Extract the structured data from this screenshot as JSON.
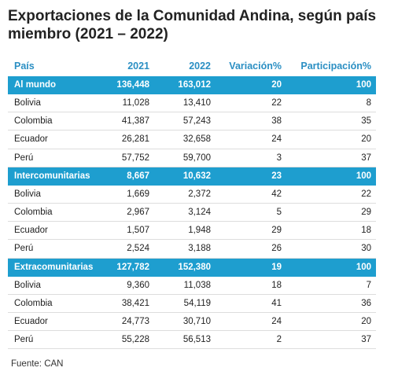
{
  "header": {
    "title": "Exportaciones de la Comunidad Andina, según país miembro (2021 – 2022)"
  },
  "table": {
    "columns": [
      "País",
      "2021",
      "2022",
      "Variación%",
      "Participación%"
    ],
    "sections": [
      {
        "total": [
          "Al mundo",
          "136,448",
          "163,012",
          "20",
          "100"
        ],
        "rows": [
          [
            "Bolivia",
            "11,028",
            "13,410",
            "22",
            "8"
          ],
          [
            "Colombia",
            "41,387",
            "57,243",
            "38",
            "35"
          ],
          [
            "Ecuador",
            "26,281",
            "32,658",
            "24",
            "20"
          ],
          [
            "Perú",
            "57,752",
            "59,700",
            "3",
            "37"
          ]
        ]
      },
      {
        "total": [
          "Intercomunitarias",
          "8,667",
          "10,632",
          "23",
          "100"
        ],
        "rows": [
          [
            "Bolivia",
            "1,669",
            "2,372",
            "42",
            "22"
          ],
          [
            "Colombia",
            "2,967",
            "3,124",
            "5",
            "29"
          ],
          [
            "Ecuador",
            "1,507",
            "1,948",
            "29",
            "18"
          ],
          [
            "Perú",
            "2,524",
            "3,188",
            "26",
            "30"
          ]
        ]
      },
      {
        "total": [
          "Extracomunitarias",
          "127,782",
          "152,380",
          "19",
          "100"
        ],
        "rows": [
          [
            "Bolivia",
            "9,360",
            "11,038",
            "18",
            "7"
          ],
          [
            "Colombia",
            "38,421",
            "54,119",
            "41",
            "36"
          ],
          [
            "Ecuador",
            "24,773",
            "30,710",
            "24",
            "20"
          ],
          [
            "Perú",
            "55,228",
            "56,513",
            "2",
            "37"
          ]
        ]
      }
    ]
  },
  "footer": {
    "source": "Fuente: CAN"
  }
}
